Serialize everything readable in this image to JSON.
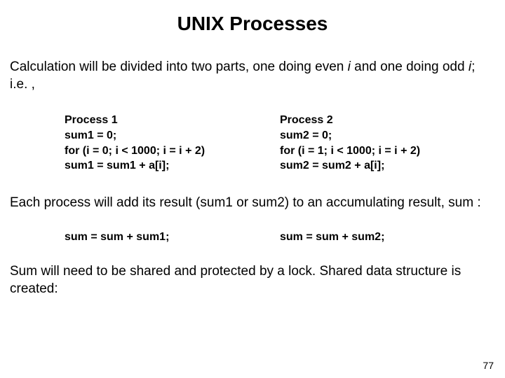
{
  "title": "UNIX Processes",
  "intro_a": "Calculation will be divided into two parts, one doing even ",
  "intro_i1": "i",
  "intro_b": " and one doing odd ",
  "intro_i2": "i",
  "intro_c": "; i.e. ,",
  "process1": {
    "l1": "Process 1",
    "l2": "sum1 = 0;",
    "l3": "for (i = 0; i < 1000; i = i + 2)",
    "l4": "sum1 = sum1 + a[i];"
  },
  "process2": {
    "l1": "Process 2",
    "l2": "sum2 = 0;",
    "l3": "for (i = 1; i < 1000; i = i + 2)",
    "l4": "sum2 = sum2 + a[i];"
  },
  "mid": "Each process will add its result (sum1 or sum2) to an accumulating result, sum :",
  "sum1_line": "sum = sum + sum1;",
  "sum2_line": "sum = sum + sum2;",
  "closing": "Sum will need to be shared and protected by a lock. Shared data structure is created:",
  "page_number": "77",
  "colors": {
    "background": "#ffffff",
    "text": "#000000"
  },
  "typography": {
    "title_fontsize": 28,
    "body_fontsize": 19,
    "code_fontsize": 16,
    "pagenum_fontsize": 14,
    "font_family": "Arial"
  }
}
